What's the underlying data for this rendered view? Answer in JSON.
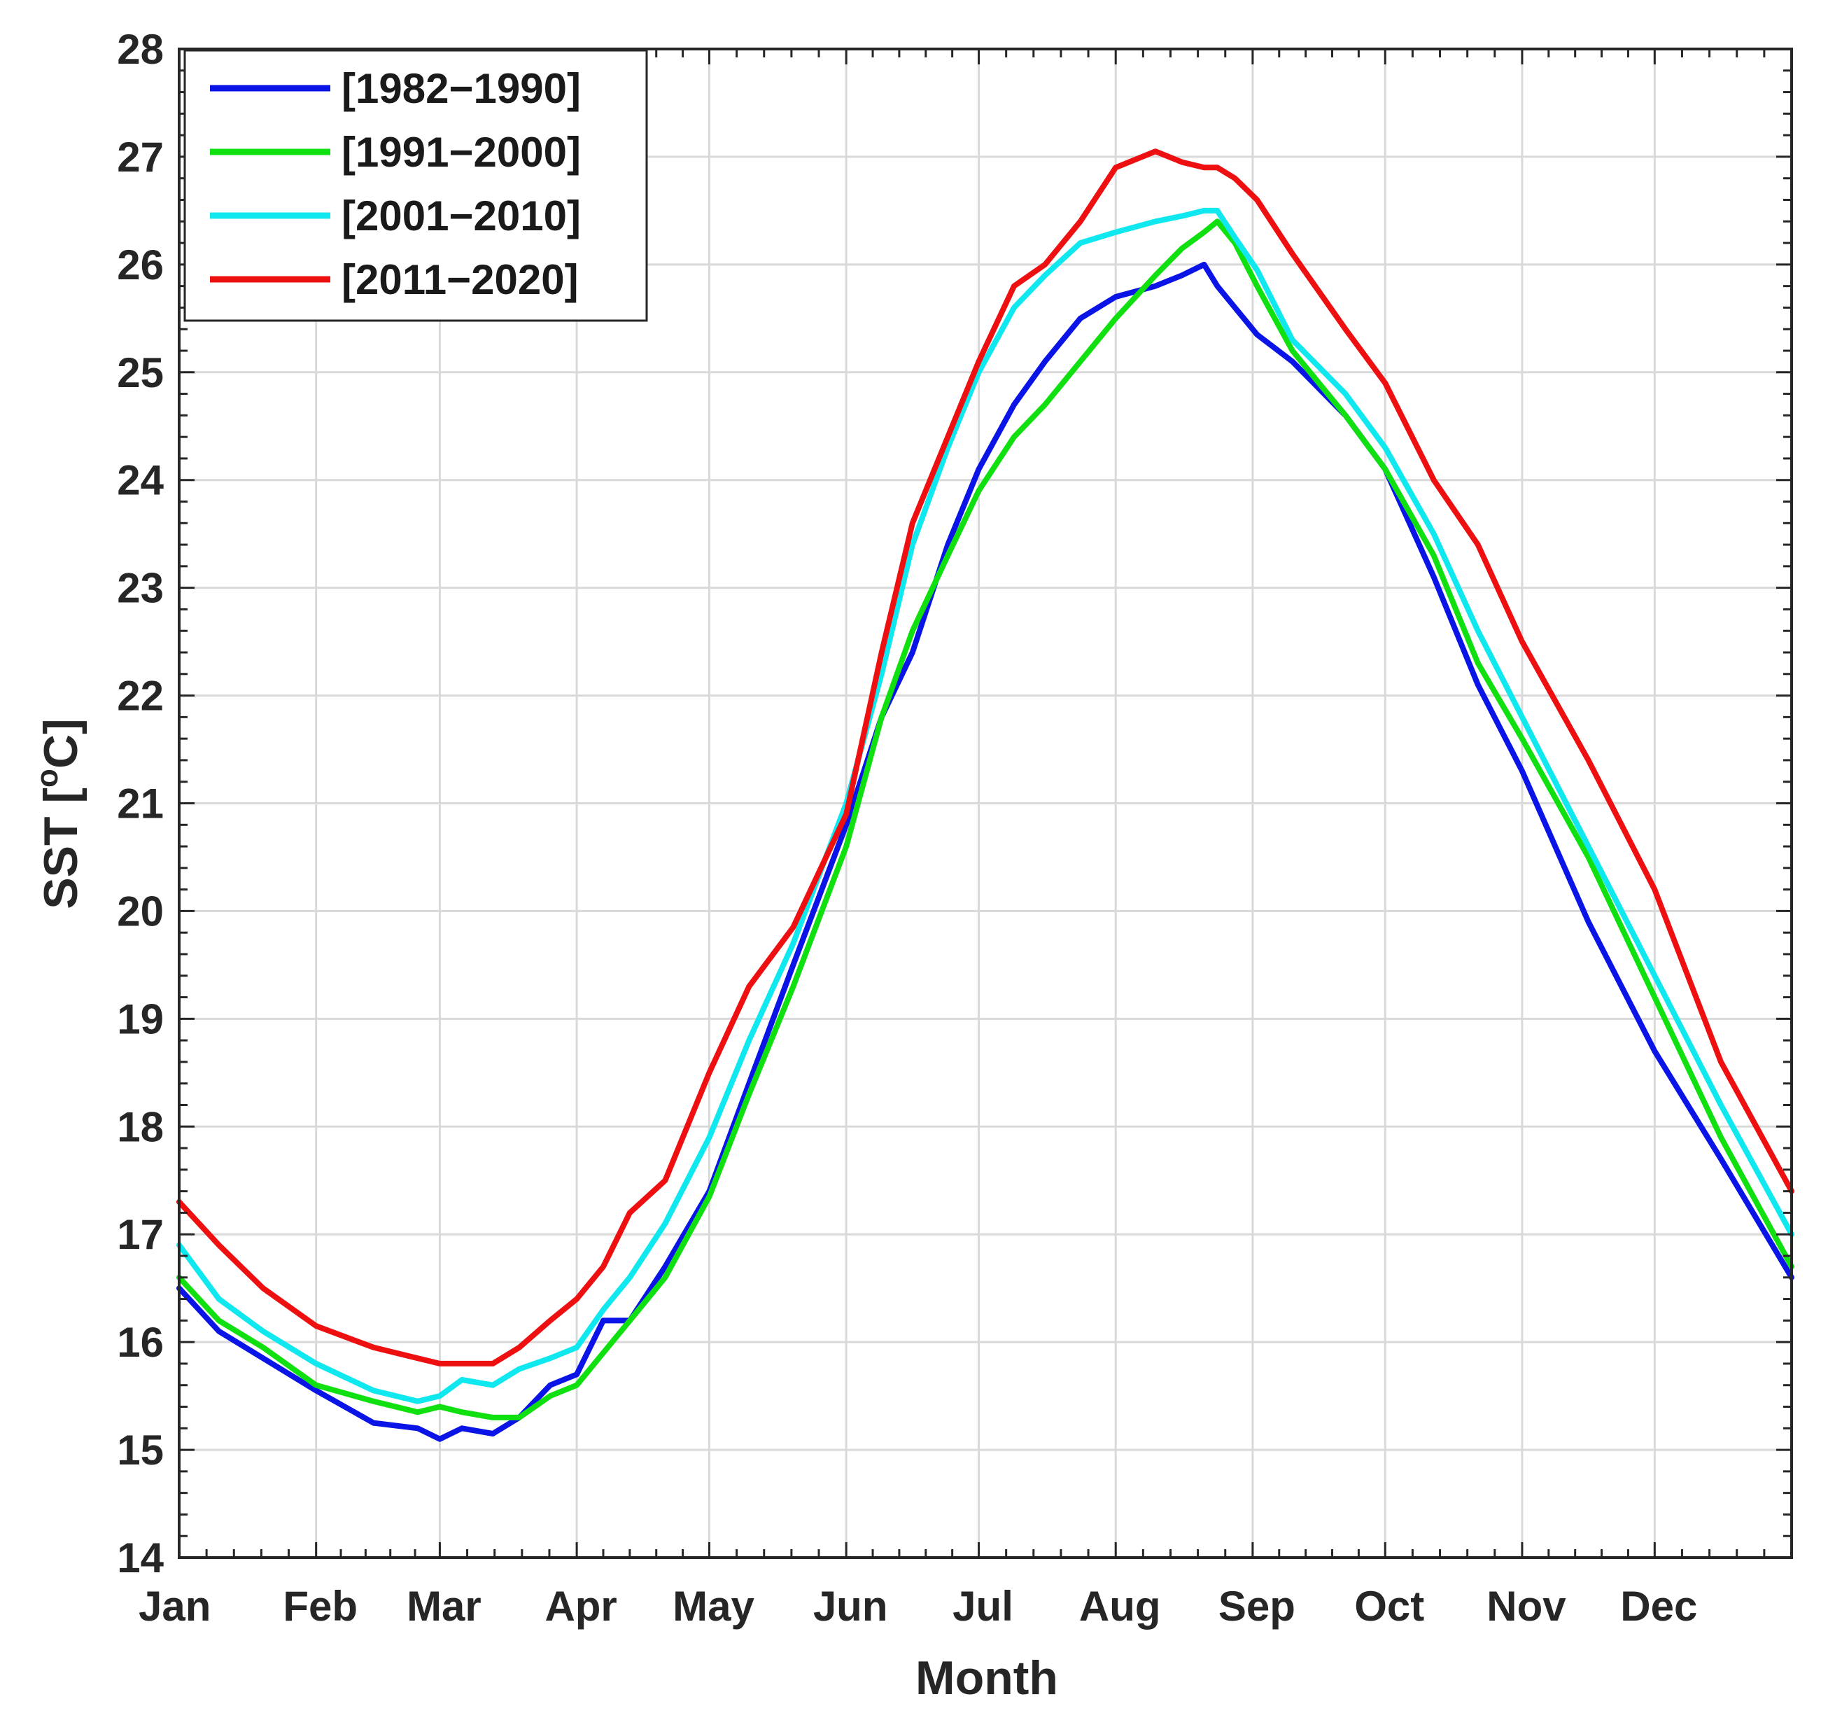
{
  "chart_data": {
    "type": "line",
    "title": "",
    "xlabel": "Month",
    "ylabel": "SST [°C]",
    "ylabel_parts": {
      "prefix": "SST [",
      "sup": "o",
      "suffix": "C]"
    },
    "xlim": [
      1,
      366
    ],
    "ylim": [
      14,
      28
    ],
    "yticks": [
      14,
      15,
      16,
      17,
      18,
      19,
      20,
      21,
      22,
      23,
      24,
      25,
      26,
      27,
      28
    ],
    "xticks": [
      {
        "day": 1,
        "label": "Jan"
      },
      {
        "day": 32,
        "label": "Feb"
      },
      {
        "day": 60,
        "label": "Mar"
      },
      {
        "day": 91,
        "label": "Apr"
      },
      {
        "day": 121,
        "label": "May"
      },
      {
        "day": 152,
        "label": "Jun"
      },
      {
        "day": 182,
        "label": "Jul"
      },
      {
        "day": 213,
        "label": "Aug"
      },
      {
        "day": 244,
        "label": "Sep"
      },
      {
        "day": 274,
        "label": "Oct"
      },
      {
        "day": 305,
        "label": "Nov"
      },
      {
        "day": 335,
        "label": "Dec"
      }
    ],
    "grid": true,
    "legend_position": "top-left",
    "x": [
      1,
      10,
      20,
      32,
      45,
      55,
      60,
      65,
      72,
      78,
      85,
      91,
      97,
      103,
      111,
      121,
      130,
      140,
      152,
      160,
      167,
      175,
      182,
      190,
      197,
      205,
      213,
      222,
      228,
      233,
      236,
      240,
      245,
      253,
      265,
      274,
      285,
      295,
      305,
      320,
      335,
      350,
      366
    ],
    "series": [
      {
        "name": "[1982−1990]",
        "color": "#0a14e6",
        "values": [
          16.5,
          16.1,
          15.85,
          15.55,
          15.25,
          15.2,
          15.1,
          15.2,
          15.15,
          15.3,
          15.6,
          15.7,
          16.2,
          16.2,
          16.7,
          17.4,
          18.4,
          19.5,
          20.8,
          21.8,
          22.4,
          23.4,
          24.1,
          24.7,
          25.1,
          25.5,
          25.7,
          25.8,
          25.9,
          26.0,
          25.8,
          25.6,
          25.35,
          25.1,
          24.6,
          24.1,
          23.1,
          22.1,
          21.3,
          19.9,
          18.7,
          17.7,
          16.6
        ]
      },
      {
        "name": "[1991−2000]",
        "color": "#10e010",
        "values": [
          16.6,
          16.2,
          15.95,
          15.6,
          15.45,
          15.35,
          15.4,
          15.35,
          15.3,
          15.3,
          15.5,
          15.6,
          15.9,
          16.2,
          16.6,
          17.35,
          18.3,
          19.3,
          20.6,
          21.8,
          22.6,
          23.3,
          23.9,
          24.4,
          24.7,
          25.1,
          25.5,
          25.9,
          26.15,
          26.3,
          26.4,
          26.2,
          25.8,
          25.2,
          24.6,
          24.1,
          23.3,
          22.3,
          21.6,
          20.5,
          19.2,
          17.9,
          16.7
        ]
      },
      {
        "name": "[2001−2010]",
        "color": "#10e8f0",
        "values": [
          16.9,
          16.4,
          16.1,
          15.8,
          15.55,
          15.45,
          15.5,
          15.65,
          15.6,
          15.75,
          15.85,
          15.95,
          16.3,
          16.6,
          17.1,
          17.9,
          18.8,
          19.7,
          21.0,
          22.2,
          23.4,
          24.3,
          25.0,
          25.6,
          25.9,
          26.2,
          26.3,
          26.4,
          26.45,
          26.5,
          26.5,
          26.25,
          25.95,
          25.3,
          24.8,
          24.3,
          23.5,
          22.6,
          21.8,
          20.6,
          19.4,
          18.2,
          17.0
        ]
      },
      {
        "name": "[2011−2020]",
        "color": "#ee1010",
        "values": [
          17.3,
          16.9,
          16.5,
          16.15,
          15.95,
          15.85,
          15.8,
          15.8,
          15.8,
          15.95,
          16.2,
          16.4,
          16.7,
          17.2,
          17.5,
          18.5,
          19.3,
          19.85,
          20.9,
          22.4,
          23.6,
          24.4,
          25.1,
          25.8,
          26.0,
          26.4,
          26.9,
          27.05,
          26.95,
          26.9,
          26.9,
          26.8,
          26.6,
          26.1,
          25.4,
          24.9,
          24.0,
          23.4,
          22.5,
          21.4,
          20.2,
          18.6,
          17.4
        ]
      }
    ]
  }
}
